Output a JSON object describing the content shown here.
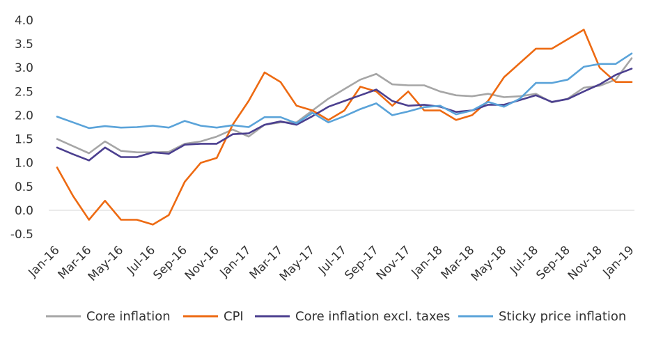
{
  "chart_data": {
    "type": "line",
    "x": [
      "Jan-16",
      "Feb-16",
      "Mar-16",
      "Apr-16",
      "May-16",
      "Jun-16",
      "Jul-16",
      "Aug-16",
      "Sep-16",
      "Oct-16",
      "Nov-16",
      "Dec-16",
      "Jan-17",
      "Feb-17",
      "Mar-17",
      "Apr-17",
      "May-17",
      "Jun-17",
      "Jul-17",
      "Aug-17",
      "Sep-17",
      "Oct-17",
      "Nov-17",
      "Dec-17",
      "Jan-18",
      "Feb-18",
      "Mar-18",
      "Apr-18",
      "May-18",
      "Jun-18",
      "Jul-18",
      "Aug-18",
      "Sep-18",
      "Oct-18",
      "Nov-18",
      "Dec-18",
      "Jan-19"
    ],
    "x_tick_labels": [
      "Jan-16",
      "Mar-16",
      "May-16",
      "Jul-16",
      "Sep-16",
      "Nov-16",
      "Jan-17",
      "Mar-17",
      "May-17",
      "Jul-17",
      "Sep-17",
      "Nov-17",
      "Jan-18",
      "Mar-18",
      "May-18",
      "Jul-18",
      "Sep-18",
      "Nov-18",
      "Jan-19"
    ],
    "ylim": [
      -0.5,
      4.0
    ],
    "y_ticks": [
      "-0.5",
      "0.0",
      "0.5",
      "1.0",
      "1.5",
      "2.0",
      "2.5",
      "3.0",
      "3.5",
      "4.0"
    ],
    "title": "",
    "xlabel": "",
    "ylabel": "",
    "grid": false,
    "legend_position": "bottom",
    "series": [
      {
        "name": "Core inflation",
        "color": "#a6a6a6",
        "values": [
          1.5,
          1.35,
          1.2,
          1.45,
          1.25,
          1.22,
          1.22,
          1.23,
          1.4,
          1.45,
          1.55,
          1.7,
          1.55,
          1.8,
          1.85,
          1.85,
          2.1,
          2.35,
          2.55,
          2.75,
          2.87,
          2.65,
          2.63,
          2.63,
          2.5,
          2.42,
          2.4,
          2.45,
          2.38,
          2.4,
          2.45,
          2.27,
          2.35,
          2.58,
          2.62,
          2.75,
          3.2
        ]
      },
      {
        "name": "CPI",
        "color": "#ed6a12",
        "values": [
          0.9,
          0.3,
          -0.2,
          0.2,
          -0.2,
          -0.2,
          -0.3,
          -0.1,
          0.6,
          1.0,
          1.1,
          1.8,
          2.3,
          2.9,
          2.7,
          2.2,
          2.1,
          1.9,
          2.1,
          2.6,
          2.5,
          2.2,
          2.5,
          2.1,
          2.1,
          1.9,
          2.0,
          2.3,
          2.8,
          3.1,
          3.4,
          3.4,
          3.6,
          3.8,
          3.0,
          2.7,
          2.7
        ]
      },
      {
        "name": "Core inflation excl. taxes",
        "color": "#4b3f8f",
        "values": [
          1.32,
          1.18,
          1.05,
          1.32,
          1.12,
          1.12,
          1.22,
          1.19,
          1.38,
          1.4,
          1.4,
          1.6,
          1.62,
          1.8,
          1.87,
          1.8,
          1.98,
          2.18,
          2.3,
          2.42,
          2.54,
          2.3,
          2.2,
          2.22,
          2.18,
          2.07,
          2.1,
          2.22,
          2.22,
          2.32,
          2.42,
          2.28,
          2.34,
          2.5,
          2.65,
          2.85,
          2.98
        ]
      },
      {
        "name": "Sticky price inflation",
        "color": "#5aa3d9",
        "values": [
          1.97,
          1.85,
          1.73,
          1.77,
          1.74,
          1.75,
          1.78,
          1.74,
          1.88,
          1.78,
          1.74,
          1.79,
          1.75,
          1.96,
          1.96,
          1.83,
          2.05,
          1.85,
          1.98,
          2.13,
          2.25,
          2.0,
          2.08,
          2.17,
          2.2,
          2.02,
          2.1,
          2.28,
          2.18,
          2.35,
          2.68,
          2.68,
          2.75,
          3.02,
          3.08,
          3.08,
          3.3
        ]
      }
    ]
  }
}
